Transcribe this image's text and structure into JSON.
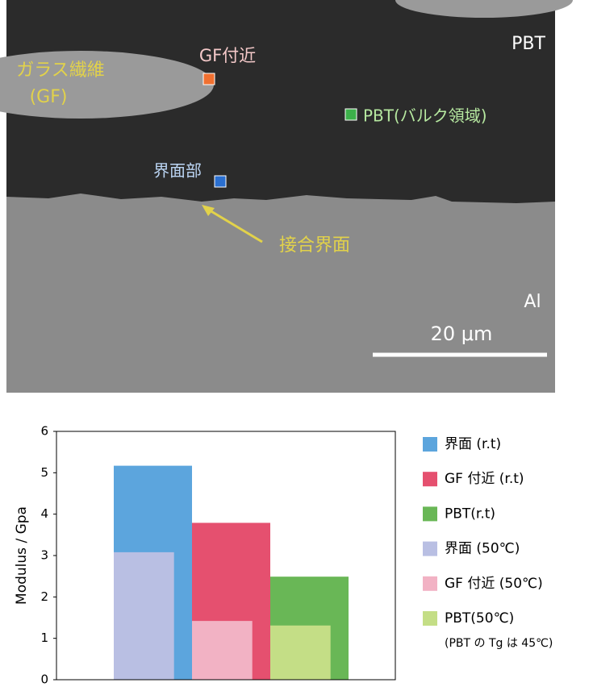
{
  "micrograph": {
    "matrix": "PBT",
    "fiber": "ガラス繊維",
    "fiber_abbr": "(GF)",
    "near_gf": "GF付近",
    "bulk": "PBT(バルク領域)",
    "interface": "界面部",
    "joint": "接合界面",
    "metal": "Al",
    "scale": "20 μm"
  },
  "chart_data": {
    "type": "bar",
    "ylabel": "Modulus / Gpa",
    "categories": [
      null,
      null,
      null
    ],
    "series": [
      {
        "name": "界面 (r.t)",
        "color": "#5ca5dd",
        "values": [
          5.17,
          null,
          null
        ]
      },
      {
        "name": "GF 付近 (r.t)",
        "color": "#e5506f",
        "values": [
          null,
          3.79,
          null
        ]
      },
      {
        "name": "PBT(r.t)",
        "color": "#69b756",
        "values": [
          null,
          null,
          2.49
        ]
      },
      {
        "name": "界面 (50℃)",
        "color": "#b9bfe3",
        "values": [
          3.08,
          null,
          null
        ]
      },
      {
        "name": "GF 付近 (50℃)",
        "color": "#f2b2c4",
        "values": [
          null,
          1.42,
          null
        ]
      },
      {
        "name": "PBT(50℃)",
        "color": "#c4de86",
        "values": [
          null,
          null,
          1.31
        ]
      }
    ],
    "note": "(PBT の Tg は 45℃)",
    "ylim": [
      0,
      6
    ],
    "yticks": [
      0,
      1,
      2,
      3,
      4,
      5,
      6
    ],
    "grid": false
  }
}
